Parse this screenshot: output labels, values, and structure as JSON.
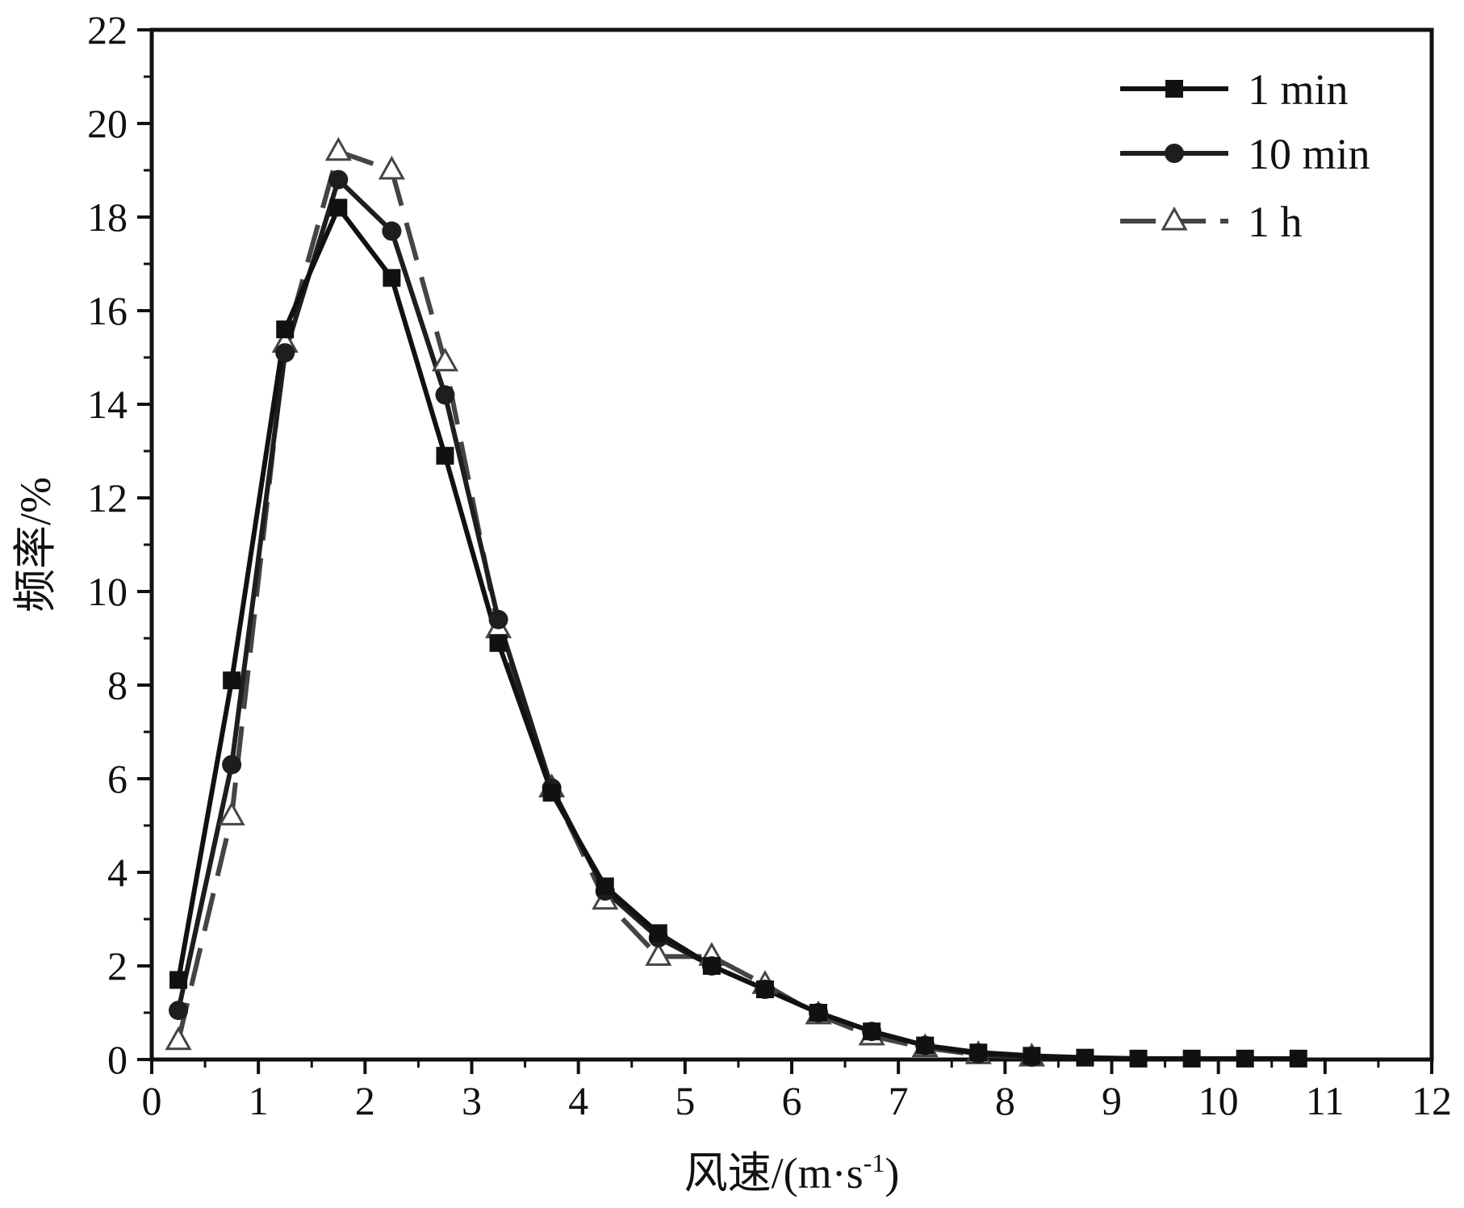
{
  "chart_data": {
    "type": "line",
    "xlabel": "风速/(m·s",
    "xlabel_sup": "-1",
    "xlabel_tail": ")",
    "ylabel": "频率/%",
    "xlim": [
      0,
      12
    ],
    "ylim": [
      0,
      22
    ],
    "x_ticks": [
      "0",
      "1",
      "2",
      "3",
      "4",
      "5",
      "6",
      "7",
      "8",
      "9",
      "10",
      "11",
      "12"
    ],
    "y_ticks": [
      "0",
      "2",
      "4",
      "6",
      "8",
      "10",
      "12",
      "14",
      "16",
      "18",
      "20",
      "22"
    ],
    "grid": false,
    "legend_position": "top-right",
    "series": [
      {
        "name": "1 min",
        "marker": "square",
        "color": "#111111",
        "line_style": "solid",
        "x": [
          0.25,
          0.75,
          1.25,
          1.75,
          2.25,
          2.75,
          3.25,
          3.75,
          4.25,
          4.75,
          5.25,
          5.75,
          6.25,
          6.75,
          7.25,
          7.75,
          8.25,
          8.75,
          9.25,
          9.75,
          10.25,
          10.75
        ],
        "values": [
          1.7,
          8.1,
          15.6,
          18.2,
          16.7,
          12.9,
          8.9,
          5.7,
          3.7,
          2.7,
          2.0,
          1.5,
          1.0,
          0.6,
          0.3,
          0.15,
          0.08,
          0.04,
          0.02,
          0.02,
          0.02,
          0.02
        ]
      },
      {
        "name": "10 min",
        "marker": "circle",
        "color": "#1e1e1e",
        "line_style": "solid",
        "x": [
          0.25,
          0.75,
          1.25,
          1.75,
          2.25,
          2.75,
          3.25,
          3.75,
          4.25,
          4.75,
          5.25,
          5.75,
          6.25,
          6.75,
          7.25,
          7.75,
          8.25
        ],
        "values": [
          1.05,
          6.3,
          15.1,
          18.8,
          17.7,
          14.2,
          9.4,
          5.8,
          3.6,
          2.6,
          2.0,
          1.5,
          1.0,
          0.6,
          0.3,
          0.12,
          0.05
        ]
      },
      {
        "name": "1 h",
        "marker": "triangle",
        "color": "#444444",
        "line_style": "dashed",
        "x": [
          0.25,
          0.75,
          1.25,
          1.75,
          2.25,
          2.75,
          3.25,
          3.75,
          4.25,
          4.75,
          5.25,
          5.75,
          6.25,
          6.75,
          7.25,
          7.75,
          8.25
        ],
        "values": [
          0.4,
          5.2,
          15.3,
          19.4,
          19.0,
          14.9,
          9.2,
          5.8,
          3.4,
          2.2,
          2.2,
          1.6,
          0.95,
          0.5,
          0.25,
          0.1,
          0.05
        ]
      }
    ]
  }
}
